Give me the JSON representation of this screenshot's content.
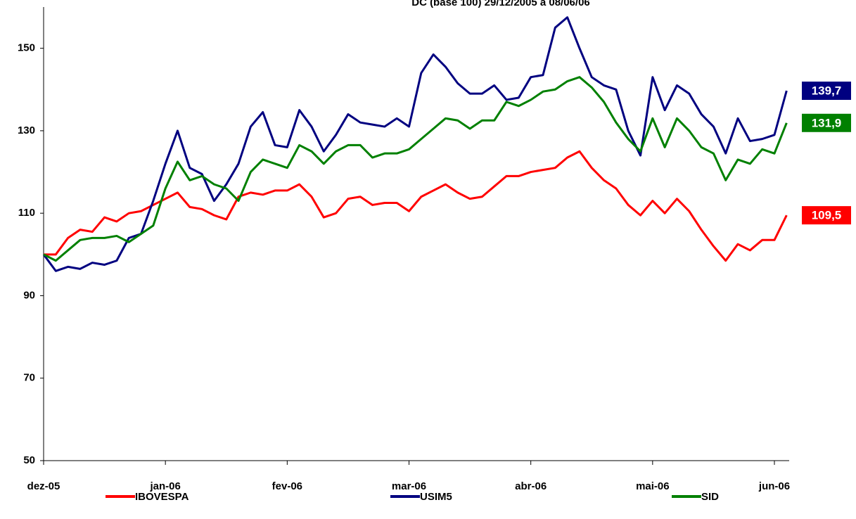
{
  "chart_data": {
    "type": "line",
    "title": "DC (base 100) 29/12/2005 a 08/06/06",
    "categories": [
      "dez-05",
      null,
      null,
      null,
      null,
      null,
      null,
      null,
      null,
      null,
      "jan-06",
      null,
      null,
      null,
      null,
      null,
      null,
      null,
      null,
      null,
      "fev-06",
      null,
      null,
      null,
      null,
      null,
      null,
      null,
      null,
      null,
      "mar-06",
      null,
      null,
      null,
      null,
      null,
      null,
      null,
      null,
      null,
      "abr-06",
      null,
      null,
      null,
      null,
      null,
      null,
      null,
      null,
      null,
      "mai-06",
      null,
      null,
      null,
      null,
      null,
      null,
      null,
      null,
      null,
      "jun-06",
      null
    ],
    "ylim": [
      50,
      160
    ],
    "yticks": [
      50,
      70,
      90,
      110,
      130,
      150
    ],
    "grid": false,
    "legend": "bottom",
    "series": [
      {
        "name": "IBOVESPA",
        "color": "#ff0000",
        "values": [
          100,
          100,
          104,
          106,
          105.5,
          109,
          108,
          110,
          110.5,
          112,
          113.5,
          115,
          111.5,
          111,
          109.5,
          108.5,
          114,
          115,
          114.5,
          115.5,
          115.5,
          117,
          114,
          109,
          110,
          113.5,
          114,
          112,
          112.5,
          112.5,
          110.5,
          114,
          115.5,
          117,
          115,
          113.5,
          114,
          116.5,
          119,
          119,
          120,
          120.5,
          121,
          123.5,
          125,
          121,
          118,
          116,
          112,
          109.5,
          113,
          110,
          113.5,
          110.5,
          106,
          102,
          98.5,
          102.5,
          101,
          103.5,
          103.5,
          109.5
        ],
        "value_labels": [
          null,
          null,
          null,
          null,
          null,
          null,
          null,
          null,
          null,
          null,
          null,
          null,
          null,
          null,
          null,
          null,
          null,
          null,
          null,
          null,
          null,
          null,
          null,
          null,
          null,
          null,
          null,
          null,
          null,
          null,
          null,
          null,
          null,
          null,
          null,
          null,
          null,
          null,
          null,
          null,
          null,
          null,
          null,
          null,
          null,
          null,
          null,
          null,
          null,
          null,
          null,
          null,
          null,
          null,
          null,
          null,
          null,
          null,
          null,
          null,
          null,
          "109,5"
        ]
      },
      {
        "name": "USIM5",
        "color": "#000080",
        "values": [
          100,
          96,
          97,
          96.5,
          98,
          97.5,
          98.5,
          104,
          105,
          113,
          122,
          130,
          121,
          119.5,
          113,
          117,
          122,
          131,
          134.5,
          126.5,
          126,
          135,
          131,
          125,
          129,
          134,
          132,
          131.5,
          131,
          133,
          131,
          144,
          148.5,
          145.5,
          141.5,
          139,
          139,
          141,
          137.5,
          138,
          143,
          143.5,
          155,
          157.5,
          150,
          143,
          141,
          140,
          130,
          124,
          143,
          135,
          141,
          139,
          134,
          131,
          124.5,
          133,
          127.5,
          128,
          129,
          139.7
        ],
        "value_labels": [
          null,
          null,
          null,
          null,
          null,
          null,
          null,
          null,
          null,
          null,
          null,
          null,
          null,
          null,
          null,
          null,
          null,
          null,
          null,
          null,
          null,
          null,
          null,
          null,
          null,
          null,
          null,
          null,
          null,
          null,
          null,
          null,
          null,
          null,
          null,
          null,
          null,
          null,
          null,
          null,
          null,
          null,
          null,
          null,
          null,
          null,
          null,
          null,
          null,
          null,
          null,
          null,
          null,
          null,
          null,
          null,
          null,
          null,
          null,
          null,
          null,
          "139,7"
        ]
      },
      {
        "name": "SID",
        "color": "#008000",
        "values": [
          100,
          98.5,
          101,
          103.5,
          104,
          104,
          104.5,
          103,
          105,
          107,
          116,
          122.5,
          118,
          119,
          117,
          116,
          113,
          120,
          123,
          122,
          121,
          126.5,
          125,
          122,
          125,
          126.5,
          126.5,
          123.5,
          124.5,
          124.5,
          125.5,
          128,
          130.5,
          133,
          132.5,
          130.5,
          132.5,
          132.5,
          137,
          136,
          137.5,
          139.5,
          140,
          142,
          143,
          140.5,
          137,
          132,
          128,
          125,
          133,
          126,
          133,
          130,
          126,
          124.5,
          118,
          123,
          122,
          125.5,
          124.5,
          131.9
        ],
        "value_labels": [
          null,
          null,
          null,
          null,
          null,
          null,
          null,
          null,
          null,
          null,
          null,
          null,
          null,
          null,
          null,
          null,
          null,
          null,
          null,
          null,
          null,
          null,
          null,
          null,
          null,
          null,
          null,
          null,
          null,
          null,
          null,
          null,
          null,
          null,
          null,
          null,
          null,
          null,
          null,
          null,
          null,
          null,
          null,
          null,
          null,
          null,
          null,
          null,
          null,
          null,
          null,
          null,
          null,
          null,
          null,
          null,
          null,
          null,
          null,
          null,
          null,
          "131,9"
        ]
      }
    ]
  }
}
